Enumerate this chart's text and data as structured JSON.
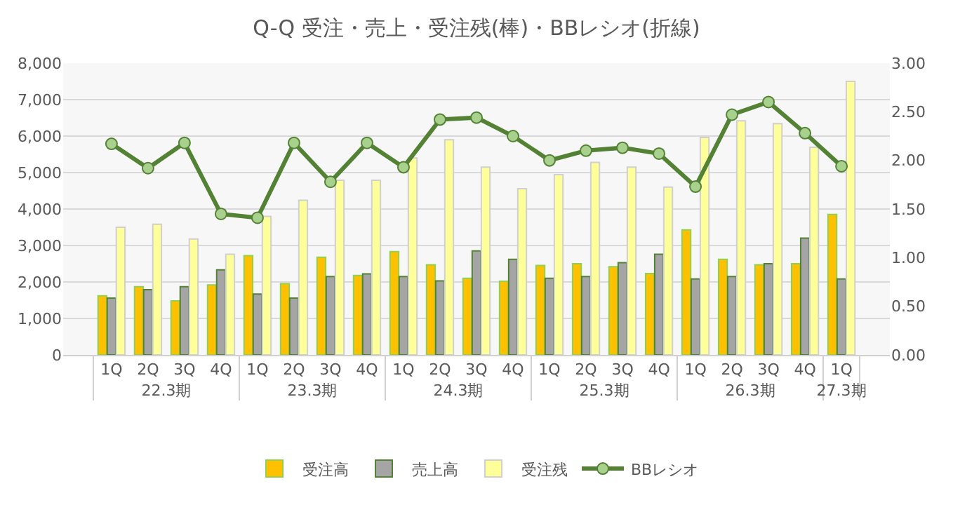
{
  "chart_data": {
    "type": "bar",
    "title": "Q-Q 受注・売上・受注残(棒)・BBレシオ(折線)",
    "categories": [
      "1Q",
      "2Q",
      "3Q",
      "4Q",
      "1Q",
      "2Q",
      "3Q",
      "4Q",
      "1Q",
      "2Q",
      "3Q",
      "4Q",
      "1Q",
      "2Q",
      "3Q",
      "4Q",
      "1Q",
      "2Q",
      "3Q",
      "4Q",
      "1Q"
    ],
    "annotations": [
      "22.3期",
      "23.3期",
      "24.3期",
      "25.3期",
      "26.3期",
      "27.3期"
    ],
    "series": [
      {
        "name": "受注高",
        "color": "#ffc000",
        "values": [
          1620,
          1870,
          1480,
          1920,
          2720,
          1950,
          2680,
          2180,
          2830,
          2470,
          2100,
          2020,
          2450,
          2500,
          2420,
          2230,
          3430,
          2620,
          2470,
          2500,
          3850
        ]
      },
      {
        "name": "売上高",
        "color": "#a5a5a5",
        "values": [
          1560,
          1790,
          1870,
          2330,
          1670,
          1560,
          2150,
          2220,
          2150,
          2030,
          2850,
          2620,
          2100,
          2150,
          2530,
          2760,
          2080,
          2150,
          2500,
          3200,
          2080
        ]
      },
      {
        "name": "受注残",
        "color": "#ffff99",
        "values": [
          3500,
          3580,
          3180,
          2760,
          3800,
          4240,
          4790,
          4790,
          5400,
          5900,
          5150,
          4560,
          4940,
          5280,
          5150,
          4600,
          5960,
          6420,
          6340,
          5690,
          7500
        ]
      },
      {
        "name": "BBレシオ",
        "type": "line",
        "axis": "y2",
        "color": "#548235",
        "marker": "circle",
        "values": [
          2.17,
          1.92,
          2.18,
          1.45,
          1.41,
          2.18,
          1.78,
          2.18,
          1.93,
          2.42,
          2.44,
          2.25,
          2.0,
          2.1,
          2.13,
          2.07,
          1.73,
          2.47,
          2.6,
          2.28,
          1.94
        ]
      }
    ],
    "ylim": [
      0,
      8000
    ],
    "yticks": [
      {
        "value": 0,
        "label": "0"
      },
      {
        "value": 1000,
        "label": "1,000"
      },
      {
        "value": 2000,
        "label": "2,000"
      },
      {
        "value": 3000,
        "label": "3,000"
      },
      {
        "value": 4000,
        "label": "4,000"
      },
      {
        "value": 5000,
        "label": "5,000"
      },
      {
        "value": 6000,
        "label": "6,000"
      },
      {
        "value": 7000,
        "label": "7,000"
      },
      {
        "value": 8000,
        "label": "8,000"
      }
    ],
    "y2lim": [
      0,
      3
    ],
    "y2ticks": [
      {
        "value": 0,
        "label": "0.00"
      },
      {
        "value": 0.5,
        "label": "0.50"
      },
      {
        "value": 1,
        "label": "1.00"
      },
      {
        "value": 1.5,
        "label": "1.50"
      },
      {
        "value": 2,
        "label": "2.00"
      },
      {
        "value": 2.5,
        "label": "2.50"
      },
      {
        "value": 3,
        "label": "3.00"
      }
    ],
    "grid": "y",
    "legend": "bottom"
  }
}
